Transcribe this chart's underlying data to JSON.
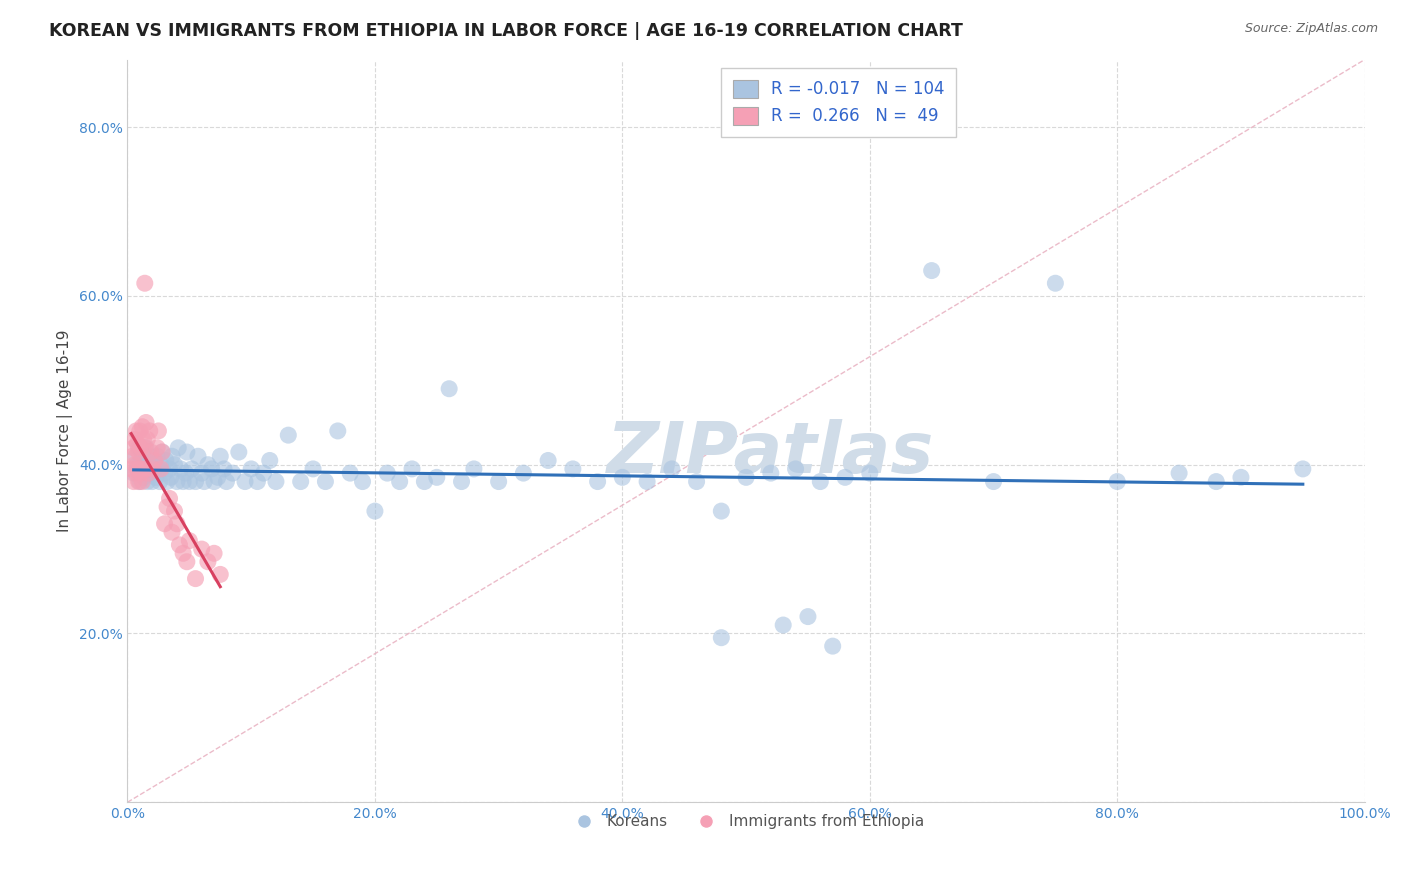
{
  "title": "KOREAN VS IMMIGRANTS FROM ETHIOPIA IN LABOR FORCE | AGE 16-19 CORRELATION CHART",
  "source": "Source: ZipAtlas.com",
  "ylabel": "In Labor Force | Age 16-19",
  "xlim": [
    0.0,
    1.0
  ],
  "ylim": [
    0.0,
    0.88
  ],
  "x_ticks": [
    0.0,
    0.2,
    0.4,
    0.6,
    0.8,
    1.0
  ],
  "y_ticks": [
    0.0,
    0.2,
    0.4,
    0.6,
    0.8
  ],
  "korean_R": -0.017,
  "korean_N": 104,
  "ethiopia_R": 0.266,
  "ethiopia_N": 49,
  "korean_color": "#aac4e0",
  "ethiopia_color": "#f5a0b5",
  "korean_line_color": "#3070b8",
  "ethiopia_line_color": "#d84060",
  "diagonal_color": "#e8b0c0",
  "background_color": "#ffffff",
  "grid_color": "#d5d5d5",
  "title_fontsize": 12.5,
  "label_fontsize": 11,
  "tick_fontsize": 10,
  "legend_fontsize": 12,
  "watermark": "ZIPatlas",
  "watermark_color": "#d0dce8",
  "korean_points_x": [
    0.005,
    0.007,
    0.008,
    0.009,
    0.01,
    0.01,
    0.011,
    0.012,
    0.013,
    0.014,
    0.015,
    0.015,
    0.016,
    0.017,
    0.018,
    0.019,
    0.02,
    0.02,
    0.021,
    0.022,
    0.023,
    0.024,
    0.025,
    0.026,
    0.027,
    0.028,
    0.03,
    0.031,
    0.032,
    0.034,
    0.035,
    0.036,
    0.038,
    0.04,
    0.041,
    0.043,
    0.045,
    0.047,
    0.048,
    0.05,
    0.052,
    0.055,
    0.057,
    0.06,
    0.062,
    0.065,
    0.068,
    0.07,
    0.073,
    0.075,
    0.078,
    0.08,
    0.085,
    0.09,
    0.095,
    0.1,
    0.105,
    0.11,
    0.115,
    0.12,
    0.13,
    0.14,
    0.15,
    0.16,
    0.17,
    0.18,
    0.19,
    0.2,
    0.21,
    0.22,
    0.23,
    0.24,
    0.25,
    0.26,
    0.27,
    0.28,
    0.3,
    0.32,
    0.34,
    0.36,
    0.38,
    0.4,
    0.42,
    0.44,
    0.46,
    0.48,
    0.5,
    0.52,
    0.54,
    0.56,
    0.58,
    0.6,
    0.65,
    0.7,
    0.75,
    0.8,
    0.85,
    0.88,
    0.9,
    0.95,
    0.48,
    0.53,
    0.55,
    0.57
  ],
  "korean_points_y": [
    0.39,
    0.41,
    0.4,
    0.42,
    0.38,
    0.395,
    0.405,
    0.415,
    0.385,
    0.395,
    0.4,
    0.42,
    0.38,
    0.39,
    0.41,
    0.395,
    0.4,
    0.38,
    0.405,
    0.395,
    0.385,
    0.41,
    0.395,
    0.38,
    0.4,
    0.415,
    0.39,
    0.405,
    0.38,
    0.395,
    0.385,
    0.41,
    0.4,
    0.38,
    0.42,
    0.395,
    0.38,
    0.39,
    0.415,
    0.38,
    0.395,
    0.38,
    0.41,
    0.39,
    0.38,
    0.4,
    0.395,
    0.38,
    0.385,
    0.41,
    0.395,
    0.38,
    0.39,
    0.415,
    0.38,
    0.395,
    0.38,
    0.39,
    0.405,
    0.38,
    0.435,
    0.38,
    0.395,
    0.38,
    0.44,
    0.39,
    0.38,
    0.345,
    0.39,
    0.38,
    0.395,
    0.38,
    0.385,
    0.49,
    0.38,
    0.395,
    0.38,
    0.39,
    0.405,
    0.395,
    0.38,
    0.385,
    0.38,
    0.395,
    0.38,
    0.345,
    0.385,
    0.39,
    0.395,
    0.38,
    0.385,
    0.39,
    0.63,
    0.38,
    0.615,
    0.38,
    0.39,
    0.38,
    0.385,
    0.395,
    0.195,
    0.21,
    0.22,
    0.185
  ],
  "ethiopia_points_x": [
    0.003,
    0.004,
    0.005,
    0.005,
    0.006,
    0.006,
    0.007,
    0.007,
    0.008,
    0.008,
    0.009,
    0.009,
    0.01,
    0.01,
    0.011,
    0.011,
    0.012,
    0.012,
    0.013,
    0.013,
    0.014,
    0.014,
    0.015,
    0.015,
    0.016,
    0.017,
    0.018,
    0.019,
    0.02,
    0.022,
    0.024,
    0.025,
    0.027,
    0.028,
    0.03,
    0.032,
    0.034,
    0.036,
    0.038,
    0.04,
    0.042,
    0.045,
    0.048,
    0.05,
    0.055,
    0.06,
    0.065,
    0.07,
    0.075
  ],
  "ethiopia_points_y": [
    0.395,
    0.41,
    0.42,
    0.38,
    0.43,
    0.4,
    0.44,
    0.39,
    0.425,
    0.395,
    0.415,
    0.38,
    0.44,
    0.395,
    0.42,
    0.39,
    0.445,
    0.38,
    0.43,
    0.395,
    0.42,
    0.615,
    0.45,
    0.395,
    0.43,
    0.39,
    0.44,
    0.415,
    0.395,
    0.405,
    0.42,
    0.44,
    0.395,
    0.415,
    0.33,
    0.35,
    0.36,
    0.32,
    0.345,
    0.33,
    0.305,
    0.295,
    0.285,
    0.31,
    0.265,
    0.3,
    0.285,
    0.295,
    0.27
  ]
}
